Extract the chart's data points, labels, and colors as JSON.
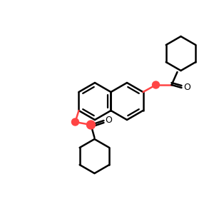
{
  "bg_color": "#ffffff",
  "bond_color": "#000000",
  "o_color": "#ff4444",
  "lw": 1.8,
  "lw_double": 1.8,
  "figsize": [
    3.0,
    3.0
  ],
  "dpi": 100
}
